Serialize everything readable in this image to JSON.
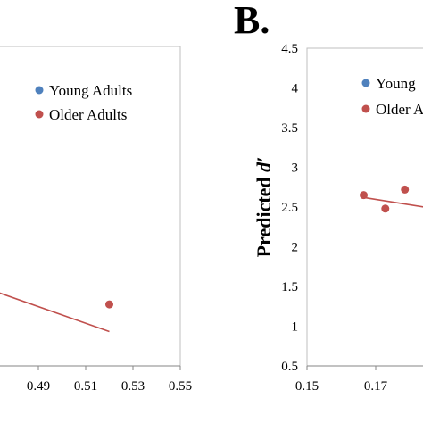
{
  "chart_data": [
    {
      "type": "scatter",
      "panel_label": "",
      "x_ticks": [
        "0.49",
        "0.51",
        "0.53",
        "0.55"
      ],
      "x_range": [
        0.47,
        0.55
      ],
      "y_range": [
        0.5,
        4.5
      ],
      "legend": {
        "placement": "top-right",
        "entries": [
          {
            "name": "Young Adults",
            "color": "#4f81bd"
          },
          {
            "name": "Older Adults",
            "color": "#c0504d"
          }
        ]
      },
      "series": [
        {
          "name": "Older Adults",
          "color": "#c0504d",
          "points": [
            {
              "x": 0.52,
              "y": 1.27
            }
          ]
        }
      ],
      "trendline": {
        "series": "Older Adults",
        "color": "#c0504d",
        "x": [
          0.47,
          0.52
        ],
        "y": [
          1.45,
          0.93
        ]
      },
      "grid": false
    },
    {
      "type": "scatter",
      "panel_label": "B.",
      "ylabel_prefix": "Predicted ",
      "ylabel_symbol": "d′",
      "x_ticks": [
        "0.15",
        "0.17"
      ],
      "x_range": [
        0.15,
        0.19
      ],
      "y_ticks": [
        "0.5",
        "1",
        "1.5",
        "2",
        "2.5",
        "3",
        "3.5",
        "4",
        "4.5"
      ],
      "y_range": [
        0.5,
        4.5
      ],
      "legend": {
        "placement": "top-right",
        "entries": [
          {
            "name": "Young",
            "color": "#4f81bd"
          },
          {
            "name": "Older A",
            "color": "#c0504d"
          }
        ]
      },
      "series": [
        {
          "name": "Older Adults",
          "color": "#c0504d",
          "points": [
            {
              "x": 0.1665,
              "y": 2.65
            },
            {
              "x": 0.1728,
              "y": 2.48
            },
            {
              "x": 0.1785,
              "y": 2.72
            }
          ]
        }
      ],
      "trendline": {
        "series": "Older Adults",
        "color": "#c0504d",
        "x": [
          0.1665,
          0.19
        ],
        "y": [
          2.62,
          2.46
        ]
      },
      "grid": false
    }
  ]
}
